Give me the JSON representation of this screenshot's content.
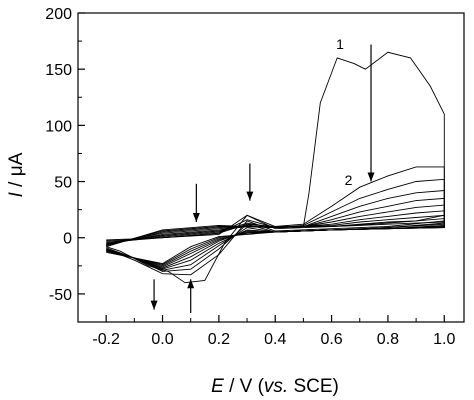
{
  "chart_data": {
    "type": "line",
    "xlabel": {
      "italic": "E",
      "rest": " / V (",
      "italic2": "vs.",
      "rest2": " SCE)"
    },
    "ylabel": {
      "italic": "I",
      "rest": " / μA"
    },
    "xlim": [
      -0.3,
      1.07
    ],
    "ylim": [
      -75,
      200
    ],
    "xticks": [
      -0.2,
      0.0,
      0.2,
      0.4,
      0.6,
      0.8,
      1.0
    ],
    "xtick_labels": [
      "-0.2",
      "0.0",
      "0.2",
      "0.4",
      "0.6",
      "0.8",
      "1.0"
    ],
    "yticks": [
      -50,
      0,
      50,
      100,
      150,
      200
    ],
    "ytick_labels": [
      "-50",
      "0",
      "50",
      "100",
      "150",
      "200"
    ],
    "grid": false,
    "annotations": [
      {
        "text": "1",
        "x": 0.63,
        "y": 168
      },
      {
        "text": "2",
        "x": 0.66,
        "y": 47
      }
    ],
    "arrows": [
      {
        "x": 0.74,
        "y_from": 172,
        "y_to": 50
      },
      {
        "x": 0.31,
        "y_from": 66,
        "y_to": 33
      },
      {
        "x": 0.12,
        "y_from": 48,
        "y_to": 14
      },
      {
        "x": -0.03,
        "y_from": -37,
        "y_to": -64
      },
      {
        "x": 0.1,
        "y_from": -67,
        "y_to": -37
      }
    ],
    "series": [
      {
        "values": [
          [
            -0.2,
            -2
          ],
          [
            0.0,
            0
          ],
          [
            0.2,
            4
          ],
          [
            0.3,
            12
          ],
          [
            0.4,
            10
          ],
          [
            0.5,
            10
          ],
          [
            0.52,
            40
          ],
          [
            0.56,
            120
          ],
          [
            0.62,
            160
          ],
          [
            0.68,
            155
          ],
          [
            0.72,
            150
          ],
          [
            0.8,
            165
          ],
          [
            0.88,
            160
          ],
          [
            0.95,
            135
          ],
          [
            1.0,
            110
          ],
          [
            1.0,
            20
          ],
          [
            0.9,
            15
          ],
          [
            0.8,
            13
          ],
          [
            0.6,
            10
          ],
          [
            0.4,
            8
          ],
          [
            0.3,
            20
          ],
          [
            0.22,
            -5
          ],
          [
            0.15,
            -38
          ],
          [
            0.08,
            -40
          ],
          [
            0.02,
            -30
          ],
          [
            -0.05,
            -25
          ],
          [
            -0.15,
            -12
          ],
          [
            -0.2,
            -8
          ]
        ]
      },
      {
        "values": [
          [
            -0.2,
            -3
          ],
          [
            0.0,
            0
          ],
          [
            0.2,
            3
          ],
          [
            0.3,
            20
          ],
          [
            0.4,
            10
          ],
          [
            0.5,
            12
          ],
          [
            0.6,
            28
          ],
          [
            0.7,
            45
          ],
          [
            0.8,
            55
          ],
          [
            0.9,
            63
          ],
          [
            1.0,
            63
          ],
          [
            1.0,
            15
          ],
          [
            0.8,
            10
          ],
          [
            0.6,
            8
          ],
          [
            0.4,
            6
          ],
          [
            0.3,
            15
          ],
          [
            0.2,
            -15
          ],
          [
            0.1,
            -33
          ],
          [
            0.0,
            -32
          ],
          [
            -0.1,
            -20
          ],
          [
            -0.2,
            -10
          ]
        ]
      },
      {
        "values": [
          [
            -0.2,
            -4
          ],
          [
            0.0,
            0
          ],
          [
            0.2,
            4
          ],
          [
            0.3,
            16
          ],
          [
            0.4,
            9
          ],
          [
            0.5,
            11
          ],
          [
            0.6,
            23
          ],
          [
            0.7,
            35
          ],
          [
            0.8,
            43
          ],
          [
            0.9,
            50
          ],
          [
            1.0,
            52
          ],
          [
            1.0,
            13
          ],
          [
            0.8,
            9
          ],
          [
            0.6,
            7
          ],
          [
            0.4,
            5
          ],
          [
            0.3,
            12
          ],
          [
            0.2,
            -10
          ],
          [
            0.1,
            -28
          ],
          [
            0.0,
            -30
          ],
          [
            -0.1,
            -18
          ],
          [
            -0.2,
            -9
          ]
        ]
      },
      {
        "values": [
          [
            -0.2,
            -5
          ],
          [
            0.0,
            1
          ],
          [
            0.2,
            5
          ],
          [
            0.3,
            13
          ],
          [
            0.4,
            9
          ],
          [
            0.5,
            10
          ],
          [
            0.6,
            19
          ],
          [
            0.7,
            28
          ],
          [
            0.8,
            35
          ],
          [
            0.9,
            40
          ],
          [
            1.0,
            42
          ],
          [
            1.0,
            12
          ],
          [
            0.8,
            9
          ],
          [
            0.6,
            7
          ],
          [
            0.4,
            5
          ],
          [
            0.3,
            9
          ],
          [
            0.2,
            -7
          ],
          [
            0.1,
            -24
          ],
          [
            0.0,
            -29
          ],
          [
            -0.1,
            -18
          ],
          [
            -0.2,
            -10
          ]
        ]
      },
      {
        "values": [
          [
            -0.2,
            -5
          ],
          [
            0.0,
            2
          ],
          [
            0.2,
            6
          ],
          [
            0.3,
            11
          ],
          [
            0.4,
            9
          ],
          [
            0.5,
            10
          ],
          [
            0.6,
            16
          ],
          [
            0.7,
            23
          ],
          [
            0.8,
            28
          ],
          [
            0.9,
            33
          ],
          [
            1.0,
            35
          ],
          [
            1.0,
            11
          ],
          [
            0.8,
            8
          ],
          [
            0.6,
            7
          ],
          [
            0.4,
            5
          ],
          [
            0.3,
            7
          ],
          [
            0.2,
            -5
          ],
          [
            0.1,
            -20
          ],
          [
            0.0,
            -28
          ],
          [
            -0.1,
            -18
          ],
          [
            -0.2,
            -10
          ]
        ]
      },
      {
        "values": [
          [
            -0.2,
            -6
          ],
          [
            0.0,
            3
          ],
          [
            0.2,
            7
          ],
          [
            0.3,
            10
          ],
          [
            0.4,
            9
          ],
          [
            0.5,
            10
          ],
          [
            0.6,
            14
          ],
          [
            0.7,
            19
          ],
          [
            0.8,
            23
          ],
          [
            0.9,
            27
          ],
          [
            1.0,
            29
          ],
          [
            1.0,
            10
          ],
          [
            0.8,
            8
          ],
          [
            0.6,
            7
          ],
          [
            0.4,
            5
          ],
          [
            0.3,
            6
          ],
          [
            0.2,
            -3
          ],
          [
            0.1,
            -17
          ],
          [
            0.0,
            -27
          ],
          [
            -0.1,
            -18
          ],
          [
            -0.2,
            -11
          ]
        ]
      },
      {
        "values": [
          [
            -0.2,
            -6
          ],
          [
            0.0,
            4
          ],
          [
            0.2,
            8
          ],
          [
            0.3,
            10
          ],
          [
            0.4,
            9
          ],
          [
            0.5,
            10
          ],
          [
            0.6,
            12
          ],
          [
            0.7,
            16
          ],
          [
            0.8,
            19
          ],
          [
            0.9,
            22
          ],
          [
            1.0,
            24
          ],
          [
            1.0,
            10
          ],
          [
            0.8,
            8
          ],
          [
            0.6,
            7
          ],
          [
            0.4,
            5
          ],
          [
            0.3,
            5
          ],
          [
            0.2,
            -2
          ],
          [
            0.1,
            -14
          ],
          [
            0.0,
            -26
          ],
          [
            -0.1,
            -18
          ],
          [
            -0.2,
            -11
          ]
        ]
      },
      {
        "values": [
          [
            -0.2,
            -7
          ],
          [
            0.0,
            5
          ],
          [
            0.2,
            9
          ],
          [
            0.3,
            10
          ],
          [
            0.4,
            9
          ],
          [
            0.5,
            10
          ],
          [
            0.6,
            11
          ],
          [
            0.7,
            14
          ],
          [
            0.8,
            16
          ],
          [
            0.9,
            18
          ],
          [
            1.0,
            20
          ],
          [
            1.0,
            9
          ],
          [
            0.8,
            8
          ],
          [
            0.6,
            7
          ],
          [
            0.4,
            5
          ],
          [
            0.3,
            4
          ],
          [
            0.2,
            -1
          ],
          [
            0.1,
            -12
          ],
          [
            0.0,
            -25
          ],
          [
            -0.1,
            -18
          ],
          [
            -0.2,
            -12
          ]
        ]
      },
      {
        "values": [
          [
            -0.2,
            -7
          ],
          [
            0.0,
            6
          ],
          [
            0.2,
            10
          ],
          [
            0.3,
            10
          ],
          [
            0.4,
            9
          ],
          [
            0.5,
            10
          ],
          [
            0.6,
            10
          ],
          [
            0.7,
            12
          ],
          [
            0.8,
            14
          ],
          [
            0.9,
            15
          ],
          [
            1.0,
            17
          ],
          [
            1.0,
            9
          ],
          [
            0.8,
            8
          ],
          [
            0.6,
            7
          ],
          [
            0.4,
            5
          ],
          [
            0.3,
            4
          ],
          [
            0.2,
            0
          ],
          [
            0.1,
            -10
          ],
          [
            0.0,
            -24
          ],
          [
            -0.1,
            -18
          ],
          [
            -0.2,
            -12
          ]
        ]
      },
      {
        "values": [
          [
            -0.2,
            -8
          ],
          [
            0.0,
            7
          ],
          [
            0.2,
            11
          ],
          [
            0.3,
            10
          ],
          [
            0.4,
            9
          ],
          [
            0.5,
            10
          ],
          [
            0.6,
            10
          ],
          [
            0.7,
            11
          ],
          [
            0.8,
            12
          ],
          [
            0.9,
            13
          ],
          [
            1.0,
            14
          ],
          [
            1.0,
            9
          ],
          [
            0.8,
            8
          ],
          [
            0.6,
            7
          ],
          [
            0.4,
            5
          ],
          [
            0.3,
            3
          ],
          [
            0.2,
            1
          ],
          [
            0.1,
            -8
          ],
          [
            0.0,
            -23
          ],
          [
            -0.1,
            -18
          ],
          [
            -0.2,
            -13
          ]
        ]
      }
    ]
  }
}
